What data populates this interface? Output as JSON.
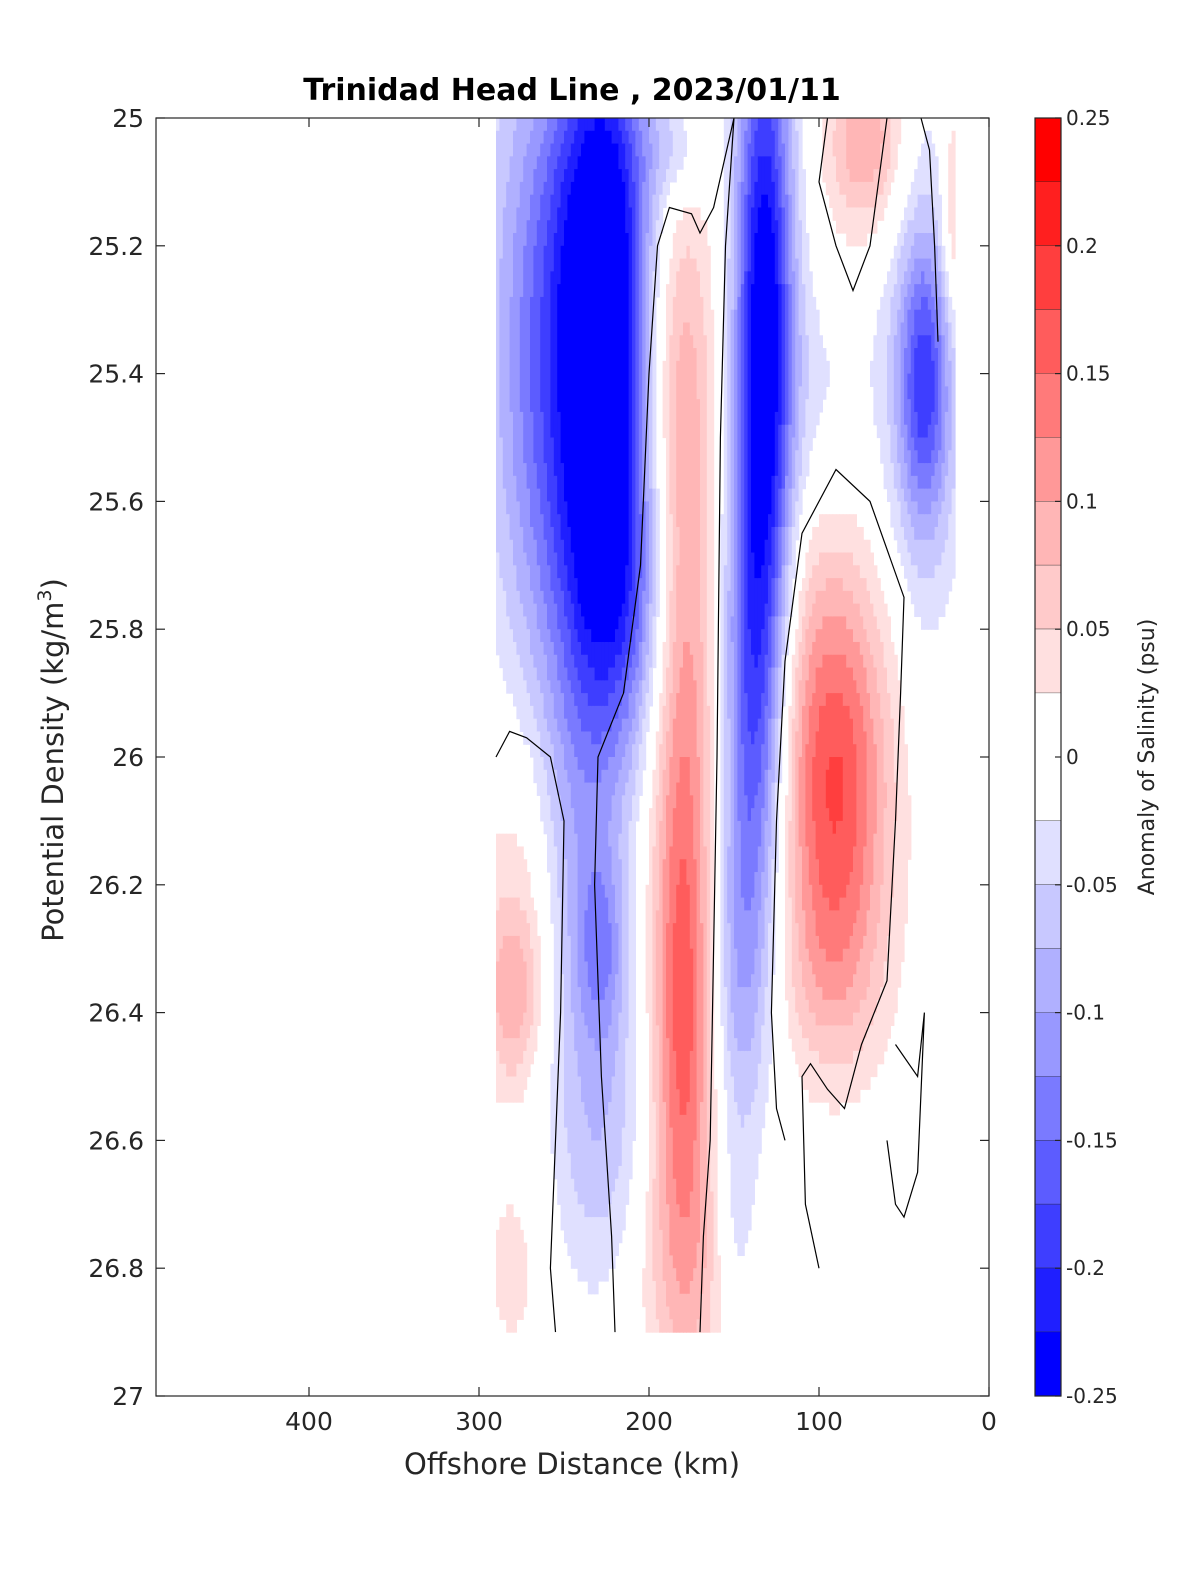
{
  "chart_data": {
    "type": "heatmap",
    "subtype": "filled-contour",
    "title": "Trinidad Head Line , 2023/01/11",
    "xlabel": "Offshore Distance (km)",
    "ylabel_main": "Potential Density (kg/m",
    "ylabel_sup": "3",
    "ylabel_end": ")",
    "xlim": [
      490,
      0
    ],
    "ylim": [
      25,
      27
    ],
    "x_direction": "reversed",
    "y_direction": "reversed",
    "xticks": [
      400,
      300,
      200,
      100,
      0
    ],
    "xtick_labels": [
      "400",
      "300",
      "200",
      "100",
      "0"
    ],
    "yticks": [
      25,
      25.2,
      25.4,
      25.6,
      25.8,
      26,
      26.2,
      26.4,
      26.6,
      26.8,
      27
    ],
    "ytick_labels": [
      "25",
      "25.2",
      "25.4",
      "25.6",
      "25.8",
      "26",
      "26.2",
      "26.4",
      "26.6",
      "26.8",
      "27"
    ],
    "colorbar": {
      "label": "Anomaly of Salinity (psu)",
      "range": [
        -0.25,
        0.25
      ],
      "ticks": [
        0.25,
        0.2,
        0.15,
        0.1,
        0.05,
        0,
        -0.05,
        -0.1,
        -0.15,
        -0.2,
        -0.25
      ],
      "tick_labels": [
        "0.25",
        "0.2",
        "0.15",
        "0.1",
        "0.05",
        "0",
        "-0.05",
        "-0.1",
        "-0.15",
        "-0.2",
        "-0.25"
      ],
      "levels": [
        {
          "low": 0.225,
          "high": 0.25,
          "color": "#ff0000"
        },
        {
          "low": 0.2,
          "high": 0.225,
          "color": "#ff1f1f"
        },
        {
          "low": 0.175,
          "high": 0.2,
          "color": "#ff3e3e"
        },
        {
          "low": 0.15,
          "high": 0.175,
          "color": "#ff5c5c"
        },
        {
          "low": 0.125,
          "high": 0.15,
          "color": "#ff7a7a"
        },
        {
          "low": 0.1,
          "high": 0.125,
          "color": "#ff9898"
        },
        {
          "low": 0.075,
          "high": 0.1,
          "color": "#ffb6b6"
        },
        {
          "low": 0.05,
          "high": 0.075,
          "color": "#ffcaca"
        },
        {
          "low": 0.025,
          "high": 0.05,
          "color": "#ffe0e0"
        },
        {
          "low": -0.025,
          "high": 0.025,
          "color": "#ffffff"
        },
        {
          "low": -0.05,
          "high": -0.025,
          "color": "#e0e0ff"
        },
        {
          "low": -0.075,
          "high": -0.05,
          "color": "#c8c8ff"
        },
        {
          "low": -0.1,
          "high": -0.075,
          "color": "#b0b0ff"
        },
        {
          "low": -0.125,
          "high": -0.1,
          "color": "#9898ff"
        },
        {
          "low": -0.15,
          "high": -0.125,
          "color": "#7a7aff"
        },
        {
          "low": -0.175,
          "high": -0.15,
          "color": "#5c5cff"
        },
        {
          "low": -0.2,
          "high": -0.175,
          "color": "#3e3eff"
        },
        {
          "low": -0.225,
          "high": -0.2,
          "color": "#1f1fff"
        },
        {
          "low": -0.25,
          "high": -0.225,
          "color": "#0000ff"
        }
      ]
    },
    "data_extent": {
      "x": [
        290,
        20
      ],
      "y": [
        25,
        26.9
      ]
    },
    "features": [
      {
        "name": "negative-core-offshore",
        "x_range": [
          290,
          200
        ],
        "y_range": [
          25.0,
          25.9
        ],
        "peak_anomaly": -0.225,
        "peak_at": {
          "x": 225,
          "y": 25.3
        }
      },
      {
        "name": "negative-tongue-deep",
        "x_range": [
          260,
          200
        ],
        "y_range": [
          25.9,
          26.8
        ],
        "peak_anomaly": -0.075,
        "peak_at": {
          "x": 230,
          "y": 26.3
        }
      },
      {
        "name": "positive-deep-offshore",
        "x_range": [
          290,
          260
        ],
        "y_range": [
          26.05,
          26.6
        ],
        "peak_anomaly": 0.075,
        "peak_at": {
          "x": 278,
          "y": 26.38
        }
      },
      {
        "name": "positive-deep-offshore-lower",
        "x_range": [
          290,
          265
        ],
        "y_range": [
          26.65,
          26.9
        ],
        "peak_anomaly": 0.025
      },
      {
        "name": "positive-band-mid",
        "x_range": [
          210,
          165
        ],
        "y_range": [
          25.25,
          26.9
        ],
        "peak_anomaly": 0.125,
        "peak_at": {
          "x": 178,
          "y": 26.0
        }
      },
      {
        "name": "negative-band-mid",
        "x_range": [
          160,
          105
        ],
        "y_range": [
          25.0,
          26.5
        ],
        "peak_anomaly": -0.225,
        "peak_at": {
          "x": 132,
          "y": 25.3
        }
      },
      {
        "name": "negative-deep-inshore",
        "x_range": [
          160,
          140
        ],
        "y_range": [
          26.55,
          26.85
        ],
        "peak_anomaly": -0.025
      },
      {
        "name": "positive-core-inshore",
        "x_range": [
          120,
          50
        ],
        "y_range": [
          25.65,
          26.45
        ],
        "peak_anomaly": 0.125,
        "peak_at": {
          "x": 88,
          "y": 26.1
        }
      },
      {
        "name": "positive-top-inshore",
        "x_range": [
          95,
          50
        ],
        "y_range": [
          25.0,
          25.2
        ],
        "peak_anomaly": 0.075,
        "peak_at": {
          "x": 72,
          "y": 25.02
        }
      },
      {
        "name": "negative-nearshore",
        "x_range": [
          60,
          20
        ],
        "y_range": [
          25.05,
          25.8
        ],
        "peak_anomaly": -0.125,
        "peak_at": {
          "x": 38,
          "y": 25.4
        }
      },
      {
        "name": "positive-top-nearshore",
        "x_range": [
          25,
          20
        ],
        "y_range": [
          25.0,
          25.3
        ],
        "peak_anomaly": 0.075
      }
    ]
  }
}
